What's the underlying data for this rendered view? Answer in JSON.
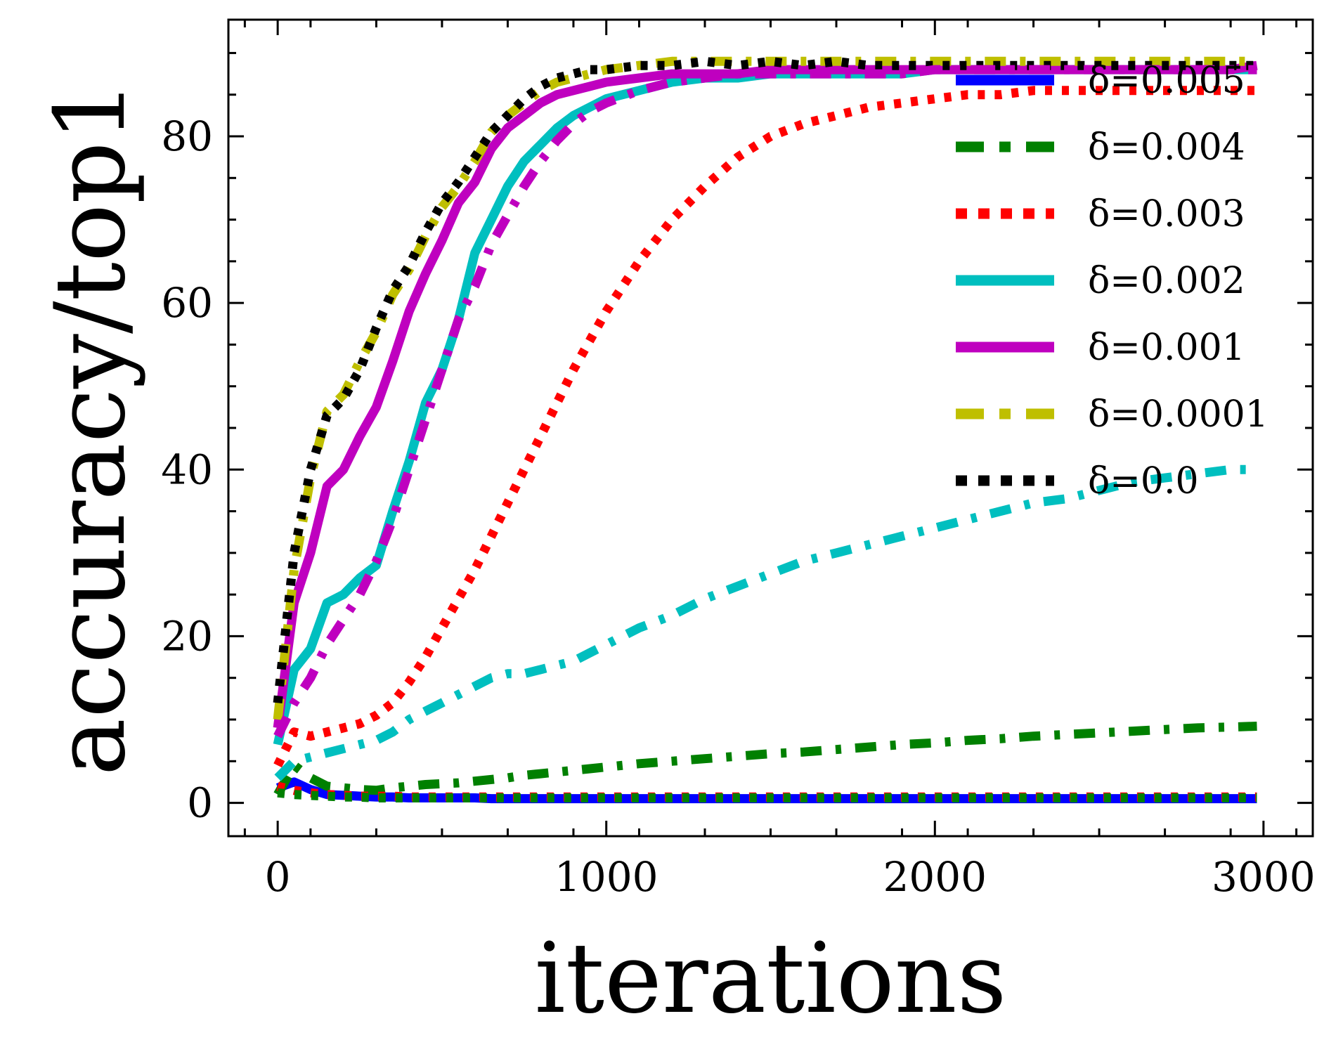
{
  "chart_data": {
    "type": "line",
    "xlabel": "iterations",
    "ylabel": "accuracy/top1",
    "xlim": [
      -150,
      3150
    ],
    "ylim": [
      -4,
      94
    ],
    "xticks": [
      0,
      1000,
      2000,
      3000
    ],
    "xtick_labels": [
      "0",
      "1000",
      "2000",
      "3000"
    ],
    "yticks": [
      0,
      20,
      40,
      60,
      80
    ],
    "ytick_labels": [
      "0",
      "20",
      "40",
      "60",
      "80"
    ],
    "legend_position": "top-right",
    "x": [
      0,
      50,
      100,
      150,
      200,
      250,
      300,
      350,
      400,
      450,
      500,
      550,
      600,
      650,
      700,
      750,
      800,
      850,
      900,
      950,
      1000,
      1100,
      1200,
      1300,
      1400,
      1500,
      1600,
      1700,
      1800,
      1900,
      2000,
      2100,
      2200,
      2300,
      2400,
      2500,
      2600,
      2700,
      2800,
      2900,
      2980
    ],
    "series": [
      {
        "name": "δ=0.005",
        "color": "#0000ff",
        "style": "solid",
        "values": [
          1.8,
          2.5,
          1.6,
          1.0,
          0.9,
          0.8,
          0.7,
          0.7,
          0.6,
          0.6,
          0.6,
          0.6,
          0.6,
          0.5,
          0.5,
          0.5,
          0.5,
          0.5,
          0.5,
          0.5,
          0.5,
          0.5,
          0.5,
          0.5,
          0.5,
          0.5,
          0.5,
          0.5,
          0.5,
          0.5,
          0.5,
          0.5,
          0.5,
          0.5,
          0.5,
          0.5,
          0.5,
          0.5,
          0.5,
          0.5,
          0.5
        ]
      },
      {
        "name": "δ=0.004",
        "color": "#008000",
        "style": "dashdot",
        "values": [
          1.0,
          4.5,
          3.0,
          2.0,
          1.8,
          1.6,
          1.5,
          1.8,
          2.0,
          2.2,
          2.3,
          2.4,
          2.6,
          2.8,
          3.0,
          3.3,
          3.5,
          3.7,
          3.9,
          4.1,
          4.3,
          4.7,
          5.0,
          5.3,
          5.6,
          5.9,
          6.1,
          6.4,
          6.7,
          7.0,
          7.2,
          7.5,
          7.7,
          8.0,
          8.2,
          8.4,
          8.6,
          8.8,
          9.0,
          9.1,
          9.2
        ]
      },
      {
        "name": "δ=0.003",
        "color": "#ff0000",
        "style": "dotted",
        "values": [
          4.5,
          8.5,
          8.0,
          8.5,
          9.0,
          9.5,
          10.5,
          12.0,
          14.5,
          17.5,
          21.0,
          24.5,
          28.0,
          32.0,
          36.0,
          40.0,
          44.0,
          48.0,
          52.0,
          55.5,
          59.0,
          65.0,
          70.0,
          74.0,
          77.5,
          80.0,
          81.5,
          82.5,
          83.5,
          84.0,
          84.5,
          85.0,
          85.0,
          85.5,
          85.5,
          85.5,
          85.5,
          85.5,
          85.5,
          85.5,
          85.5
        ]
      },
      {
        "name": "δ=0.002",
        "color": "#00bfbf",
        "style": "solid",
        "values": [
          7.0,
          16.0,
          18.5,
          24.0,
          25.0,
          27.0,
          28.5,
          35.0,
          41.0,
          48.0,
          52.0,
          58.0,
          66.0,
          70.0,
          74.0,
          77.0,
          79.0,
          81.0,
          82.5,
          83.5,
          84.5,
          85.5,
          86.5,
          87.0,
          87.0,
          87.5,
          87.5,
          87.5,
          87.5,
          87.5,
          88.0,
          88.0,
          88.0,
          88.0,
          88.0,
          88.0,
          88.0,
          88.0,
          88.0,
          88.0,
          88.0
        ]
      },
      {
        "name": "δ=0.001",
        "color": "#bf00bf",
        "style": "solid",
        "values": [
          9.0,
          24.0,
          30.0,
          38.0,
          40.0,
          44.0,
          47.5,
          53.0,
          59.0,
          63.5,
          67.5,
          72.0,
          74.5,
          78.5,
          81.0,
          82.5,
          84.0,
          85.0,
          85.5,
          86.0,
          86.5,
          87.0,
          87.5,
          87.5,
          87.5,
          88.0,
          88.0,
          88.0,
          88.0,
          88.0,
          88.0,
          88.0,
          88.0,
          88.0,
          88.0,
          88.0,
          88.0,
          88.0,
          88.0,
          88.0,
          88.5
        ]
      },
      {
        "name": "δ=0.0001",
        "color": "#bfbf00",
        "style": "dashdot",
        "values": [
          10.0,
          28.0,
          39.0,
          47.0,
          49.0,
          53.0,
          56.5,
          61.0,
          64.0,
          68.0,
          71.5,
          74.0,
          77.0,
          80.5,
          82.5,
          84.0,
          85.5,
          86.5,
          87.0,
          87.5,
          88.0,
          88.5,
          89.0,
          89.0,
          89.0,
          89.0,
          89.0,
          89.0,
          89.0,
          89.0,
          89.0,
          89.0,
          89.0,
          89.0,
          89.0,
          89.0,
          89.0,
          89.0,
          89.0,
          89.0,
          89.0
        ]
      },
      {
        "name": "δ=0.0",
        "color": "#000000",
        "style": "dotted",
        "values": [
          12.0,
          30.0,
          40.0,
          46.5,
          48.5,
          52.0,
          57.0,
          61.5,
          64.5,
          68.5,
          72.0,
          74.5,
          77.5,
          80.5,
          82.5,
          84.5,
          86.0,
          87.0,
          87.5,
          88.0,
          88.0,
          88.5,
          88.5,
          89.0,
          88.5,
          89.0,
          88.5,
          89.0,
          88.5,
          88.5,
          88.5,
          88.5,
          88.5,
          88.5,
          88.5,
          88.5,
          88.5,
          88.5,
          88.5,
          88.5,
          88.5
        ]
      },
      {
        "name": "",
        "color": "#00bfbf",
        "style": "dashdot",
        "values": [
          3.0,
          5.0,
          5.5,
          6.0,
          6.5,
          7.0,
          7.5,
          8.5,
          10.0,
          11.0,
          12.0,
          13.0,
          14.0,
          15.0,
          15.5,
          15.5,
          16.0,
          16.5,
          17.0,
          18.0,
          19.0,
          21.0,
          22.5,
          24.5,
          26.0,
          27.5,
          29.0,
          30.0,
          31.0,
          32.0,
          33.0,
          34.0,
          35.0,
          36.0,
          36.5,
          37.5,
          38.5,
          39.0,
          39.5,
          40.0,
          40.0
        ]
      },
      {
        "name": "",
        "color": "#bf00bf",
        "style": "dashdot",
        "values": [
          8.0,
          12.0,
          15.0,
          19.0,
          22.0,
          25.0,
          29.0,
          34.0,
          40.0,
          46.0,
          52.0,
          58.0,
          62.0,
          67.0,
          70.5,
          74.0,
          77.0,
          79.5,
          81.5,
          83.0,
          84.0,
          85.5,
          86.5,
          87.0,
          87.5,
          87.5,
          87.5,
          87.5,
          87.5,
          87.5,
          88.0,
          88.0,
          88.0,
          88.0,
          88.0,
          88.0,
          88.0,
          88.0,
          88.0,
          88.0,
          88.0
        ]
      },
      {
        "name": "",
        "color": "#ff0000",
        "style": "dotted",
        "values": [
          2.0,
          1.5,
          1.2,
          1.0,
          0.9,
          0.8,
          0.8,
          0.8,
          0.7,
          0.7,
          0.7,
          0.7,
          0.7,
          0.7,
          0.7,
          0.7,
          0.7,
          0.7,
          0.7,
          0.7,
          0.7,
          0.7,
          0.7,
          0.7,
          0.7,
          0.7,
          0.7,
          0.7,
          0.7,
          0.7,
          0.7,
          0.7,
          0.7,
          0.7,
          0.7,
          0.7,
          0.7,
          0.7,
          0.7,
          0.7,
          0.7
        ]
      },
      {
        "name": "",
        "color": "#008000",
        "style": "dotted",
        "values": [
          1.2,
          1.0,
          0.9,
          0.8,
          0.7,
          0.7,
          0.6,
          0.6,
          0.6,
          0.6,
          0.6,
          0.6,
          0.6,
          0.6,
          0.6,
          0.6,
          0.6,
          0.6,
          0.6,
          0.6,
          0.6,
          0.6,
          0.6,
          0.6,
          0.6,
          0.6,
          0.6,
          0.6,
          0.6,
          0.6,
          0.6,
          0.6,
          0.6,
          0.6,
          0.6,
          0.6,
          0.6,
          0.6,
          0.6,
          0.6,
          0.6
        ]
      }
    ]
  }
}
